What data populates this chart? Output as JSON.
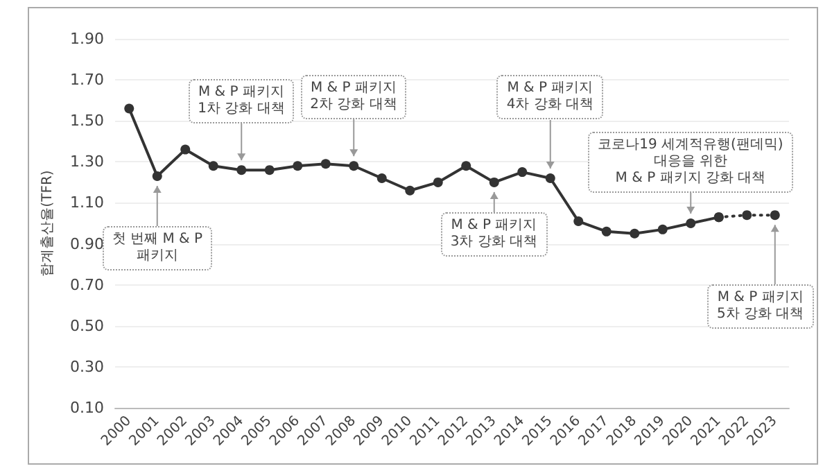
{
  "chart_data": {
    "type": "line",
    "ylabel": "합계출산율(TFR)",
    "categories": [
      "2000",
      "2001",
      "2002",
      "2003",
      "2004",
      "2005",
      "2006",
      "2007",
      "2008",
      "2009",
      "2010",
      "2011",
      "2012",
      "2013",
      "2014",
      "2015",
      "2016",
      "2017",
      "2018",
      "2019",
      "2020",
      "2021",
      "2022",
      "2023"
    ],
    "series": [
      {
        "color": "#333333",
        "line_style": "solid",
        "values": [
          1.56,
          1.23,
          1.36,
          1.28,
          1.26,
          1.26,
          1.28,
          1.29,
          1.28,
          1.22,
          1.16,
          1.2,
          1.28,
          1.2,
          1.25,
          1.22,
          1.01,
          0.96,
          0.95,
          0.97,
          1.0,
          1.03,
          null,
          null
        ]
      },
      {
        "color": "#333333",
        "line_style": "dotted",
        "values": [
          null,
          null,
          null,
          null,
          null,
          null,
          null,
          null,
          null,
          null,
          null,
          null,
          null,
          null,
          null,
          null,
          null,
          null,
          null,
          null,
          null,
          1.03,
          1.04,
          1.04
        ]
      }
    ],
    "ylim": [
      0.1,
      1.9
    ],
    "yticks": [
      {
        "value": 0.1,
        "label": "0.10"
      },
      {
        "value": 0.3,
        "label": "0.30"
      },
      {
        "value": 0.5,
        "label": "0.50"
      },
      {
        "value": 0.7,
        "label": "0.70"
      },
      {
        "value": 0.9,
        "label": "0.90"
      },
      {
        "value": 1.1,
        "label": "1.10"
      },
      {
        "value": 1.3,
        "label": "1.30"
      },
      {
        "value": 1.5,
        "label": "1.50"
      },
      {
        "value": 1.7,
        "label": "1.70"
      },
      {
        "value": 1.9,
        "label": "1.90"
      }
    ],
    "grid": "y",
    "marker": "circle",
    "annotations": [
      {
        "text": "첫 번째 M & P\n패키지",
        "x": "2001",
        "y": 1.23
      },
      {
        "text": "M & P 패키지\n1차 강화 대책",
        "x": "2004",
        "y": 1.26
      },
      {
        "text": "M & P 패키지\n2차 강화 대책",
        "x": "2008",
        "y": 1.28
      },
      {
        "text": "M & P 패키지\n3차 강화 대책",
        "x": "2013",
        "y": 1.2
      },
      {
        "text": "M & P 패키지\n4차 강화 대책",
        "x": "2015",
        "y": 1.22
      },
      {
        "text": "코로나19 세계적유행(팬데믹)\n대응을 위한\nM & P 패키지 강화 대책",
        "x": "2020",
        "y": 1.0
      },
      {
        "text": "M & P 패키지\n5차 강화 대책",
        "x": "2023",
        "y": 1.04
      }
    ]
  }
}
